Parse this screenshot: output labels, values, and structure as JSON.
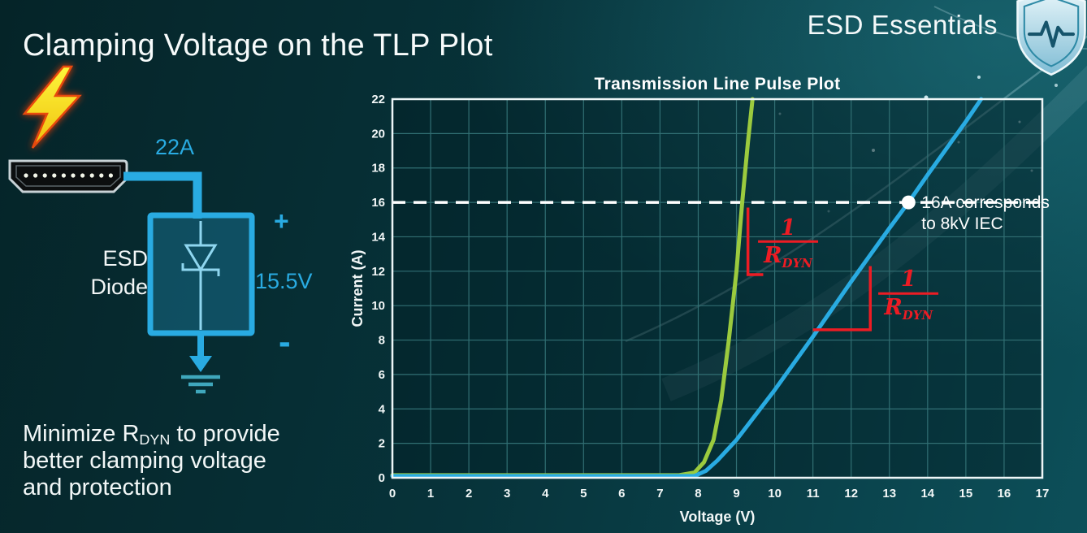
{
  "slide": {
    "title": "Clamping Voltage on the TLP Plot"
  },
  "brand": {
    "name": "ESD Essentials",
    "icon": "shield-pulse-icon"
  },
  "diagram": {
    "surge_current": "22A",
    "clamp_voltage": "15.5V",
    "plus": "+",
    "minus": "-",
    "device_line1": "ESD",
    "device_line2": "Diode"
  },
  "note": {
    "pre": "Minimize R",
    "sub": "DYN",
    "post": " to provide",
    "line2": "better clamping voltage",
    "line3": "and protection"
  },
  "colors": {
    "accent_cyan": "#29ABE2",
    "curve_green": "#9BCA3E",
    "curve_blue": "#29ABE2",
    "annotation_red": "#ED1C24"
  },
  "chart_data": {
    "type": "line",
    "title": "Transmission Line Pulse Plot",
    "xlabel": "Voltage (V)",
    "ylabel": "Current (A)",
    "xlim": [
      0,
      17
    ],
    "ylim": [
      0,
      22
    ],
    "xtick_step": 1,
    "ytick_step": 2,
    "grid": true,
    "series": [
      {
        "name": "green_curve",
        "color": "#9BCA3E",
        "width": 5,
        "points": [
          [
            0,
            0.15
          ],
          [
            7.5,
            0.15
          ],
          [
            7.9,
            0.3
          ],
          [
            8.15,
            0.9
          ],
          [
            8.4,
            2.2
          ],
          [
            8.6,
            4.5
          ],
          [
            8.8,
            8
          ],
          [
            9.0,
            12
          ],
          [
            9.15,
            16
          ],
          [
            9.3,
            19.5
          ],
          [
            9.42,
            22
          ]
        ]
      },
      {
        "name": "blue_curve",
        "color": "#29ABE2",
        "width": 5,
        "points": [
          [
            0,
            0.1
          ],
          [
            7.9,
            0.1
          ],
          [
            8.2,
            0.4
          ],
          [
            8.5,
            1.0
          ],
          [
            9,
            2.2
          ],
          [
            10,
            5.1
          ],
          [
            11,
            8.2
          ],
          [
            12,
            11.4
          ],
          [
            13,
            14.5
          ],
          [
            13.5,
            16
          ],
          [
            14,
            17.6
          ],
          [
            15,
            20.7
          ],
          [
            15.4,
            22
          ]
        ]
      }
    ],
    "reference_line": {
      "y": 16,
      "color": "#ffffff",
      "style": "dashed"
    },
    "marker": {
      "x": 13.5,
      "y": 16,
      "color": "#ffffff",
      "label_line1": "16A corresponds",
      "label_line2": "to 8kV IEC"
    },
    "slope_indicators": [
      {
        "polyline": [
          [
            9.3,
            15.7
          ],
          [
            9.3,
            11.8
          ],
          [
            9.7,
            11.8
          ]
        ],
        "color": "#ED1C24"
      },
      {
        "polyline": [
          [
            11.0,
            8.6
          ],
          [
            12.5,
            8.6
          ],
          [
            12.5,
            12.3
          ]
        ],
        "color": "#ED1C24"
      }
    ],
    "fractions": [
      {
        "x": 10.35,
        "y": 13.6,
        "numerator": "1",
        "den_base": "R",
        "den_sub": "DYN",
        "color": "#ED1C24"
      },
      {
        "x": 13.5,
        "y": 10.6,
        "numerator": "1",
        "den_base": "R",
        "den_sub": "DYN",
        "color": "#ED1C24"
      }
    ]
  }
}
